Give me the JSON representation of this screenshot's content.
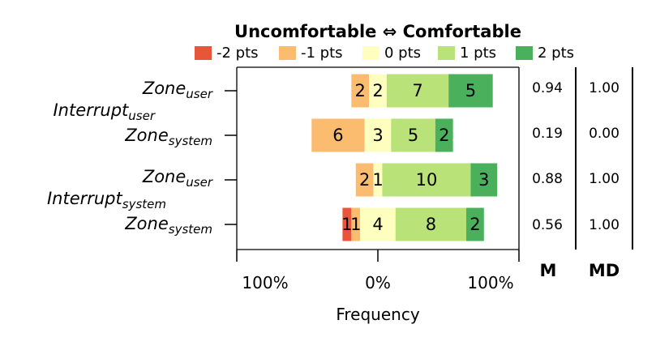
{
  "chart_data": {
    "type": "bar",
    "title": "Uncomfortable ⇔ Comfortable",
    "xlabel": "Frequency",
    "x_tick_labels": [
      "100%",
      "0%",
      "100%"
    ],
    "legend": [
      {
        "label": "-2 pts",
        "color": "#e8553a"
      },
      {
        "label": "-1 pts",
        "color": "#fcbc70"
      },
      {
        "label": "0 pts",
        "color": "#feffbe"
      },
      {
        "label": "1 pts",
        "color": "#b9e279"
      },
      {
        "label": "2 pts",
        "color": "#4bb05c"
      }
    ],
    "groups": [
      {
        "label": "Interrupt",
        "sub": "user"
      },
      {
        "label": "Interrupt",
        "sub": "system"
      }
    ],
    "rows": [
      {
        "zone": "Zone",
        "zone_sub": "user",
        "counts": [
          0,
          2,
          2,
          7,
          5
        ],
        "labels": [
          "",
          "2",
          "2",
          "7",
          "5"
        ],
        "M": "0.94",
        "MD": "1.00"
      },
      {
        "zone": "Zone",
        "zone_sub": "system",
        "counts": [
          0,
          6,
          3,
          5,
          2
        ],
        "labels": [
          "",
          "6",
          "3",
          "5",
          "2"
        ],
        "M": "0.19",
        "MD": "0.00"
      },
      {
        "zone": "Zone",
        "zone_sub": "user",
        "counts": [
          0,
          2,
          1,
          10,
          3
        ],
        "labels": [
          "",
          "2",
          "1",
          "10",
          "3"
        ],
        "M": "0.88",
        "MD": "1.00"
      },
      {
        "zone": "Zone",
        "zone_sub": "system",
        "counts": [
          1,
          1,
          4,
          8,
          2
        ],
        "labels": [
          "1",
          "1",
          "4",
          "8",
          "2"
        ],
        "M": "0.56",
        "MD": "1.00"
      }
    ],
    "stat_headers": {
      "M": "M",
      "MD": "MD"
    }
  }
}
